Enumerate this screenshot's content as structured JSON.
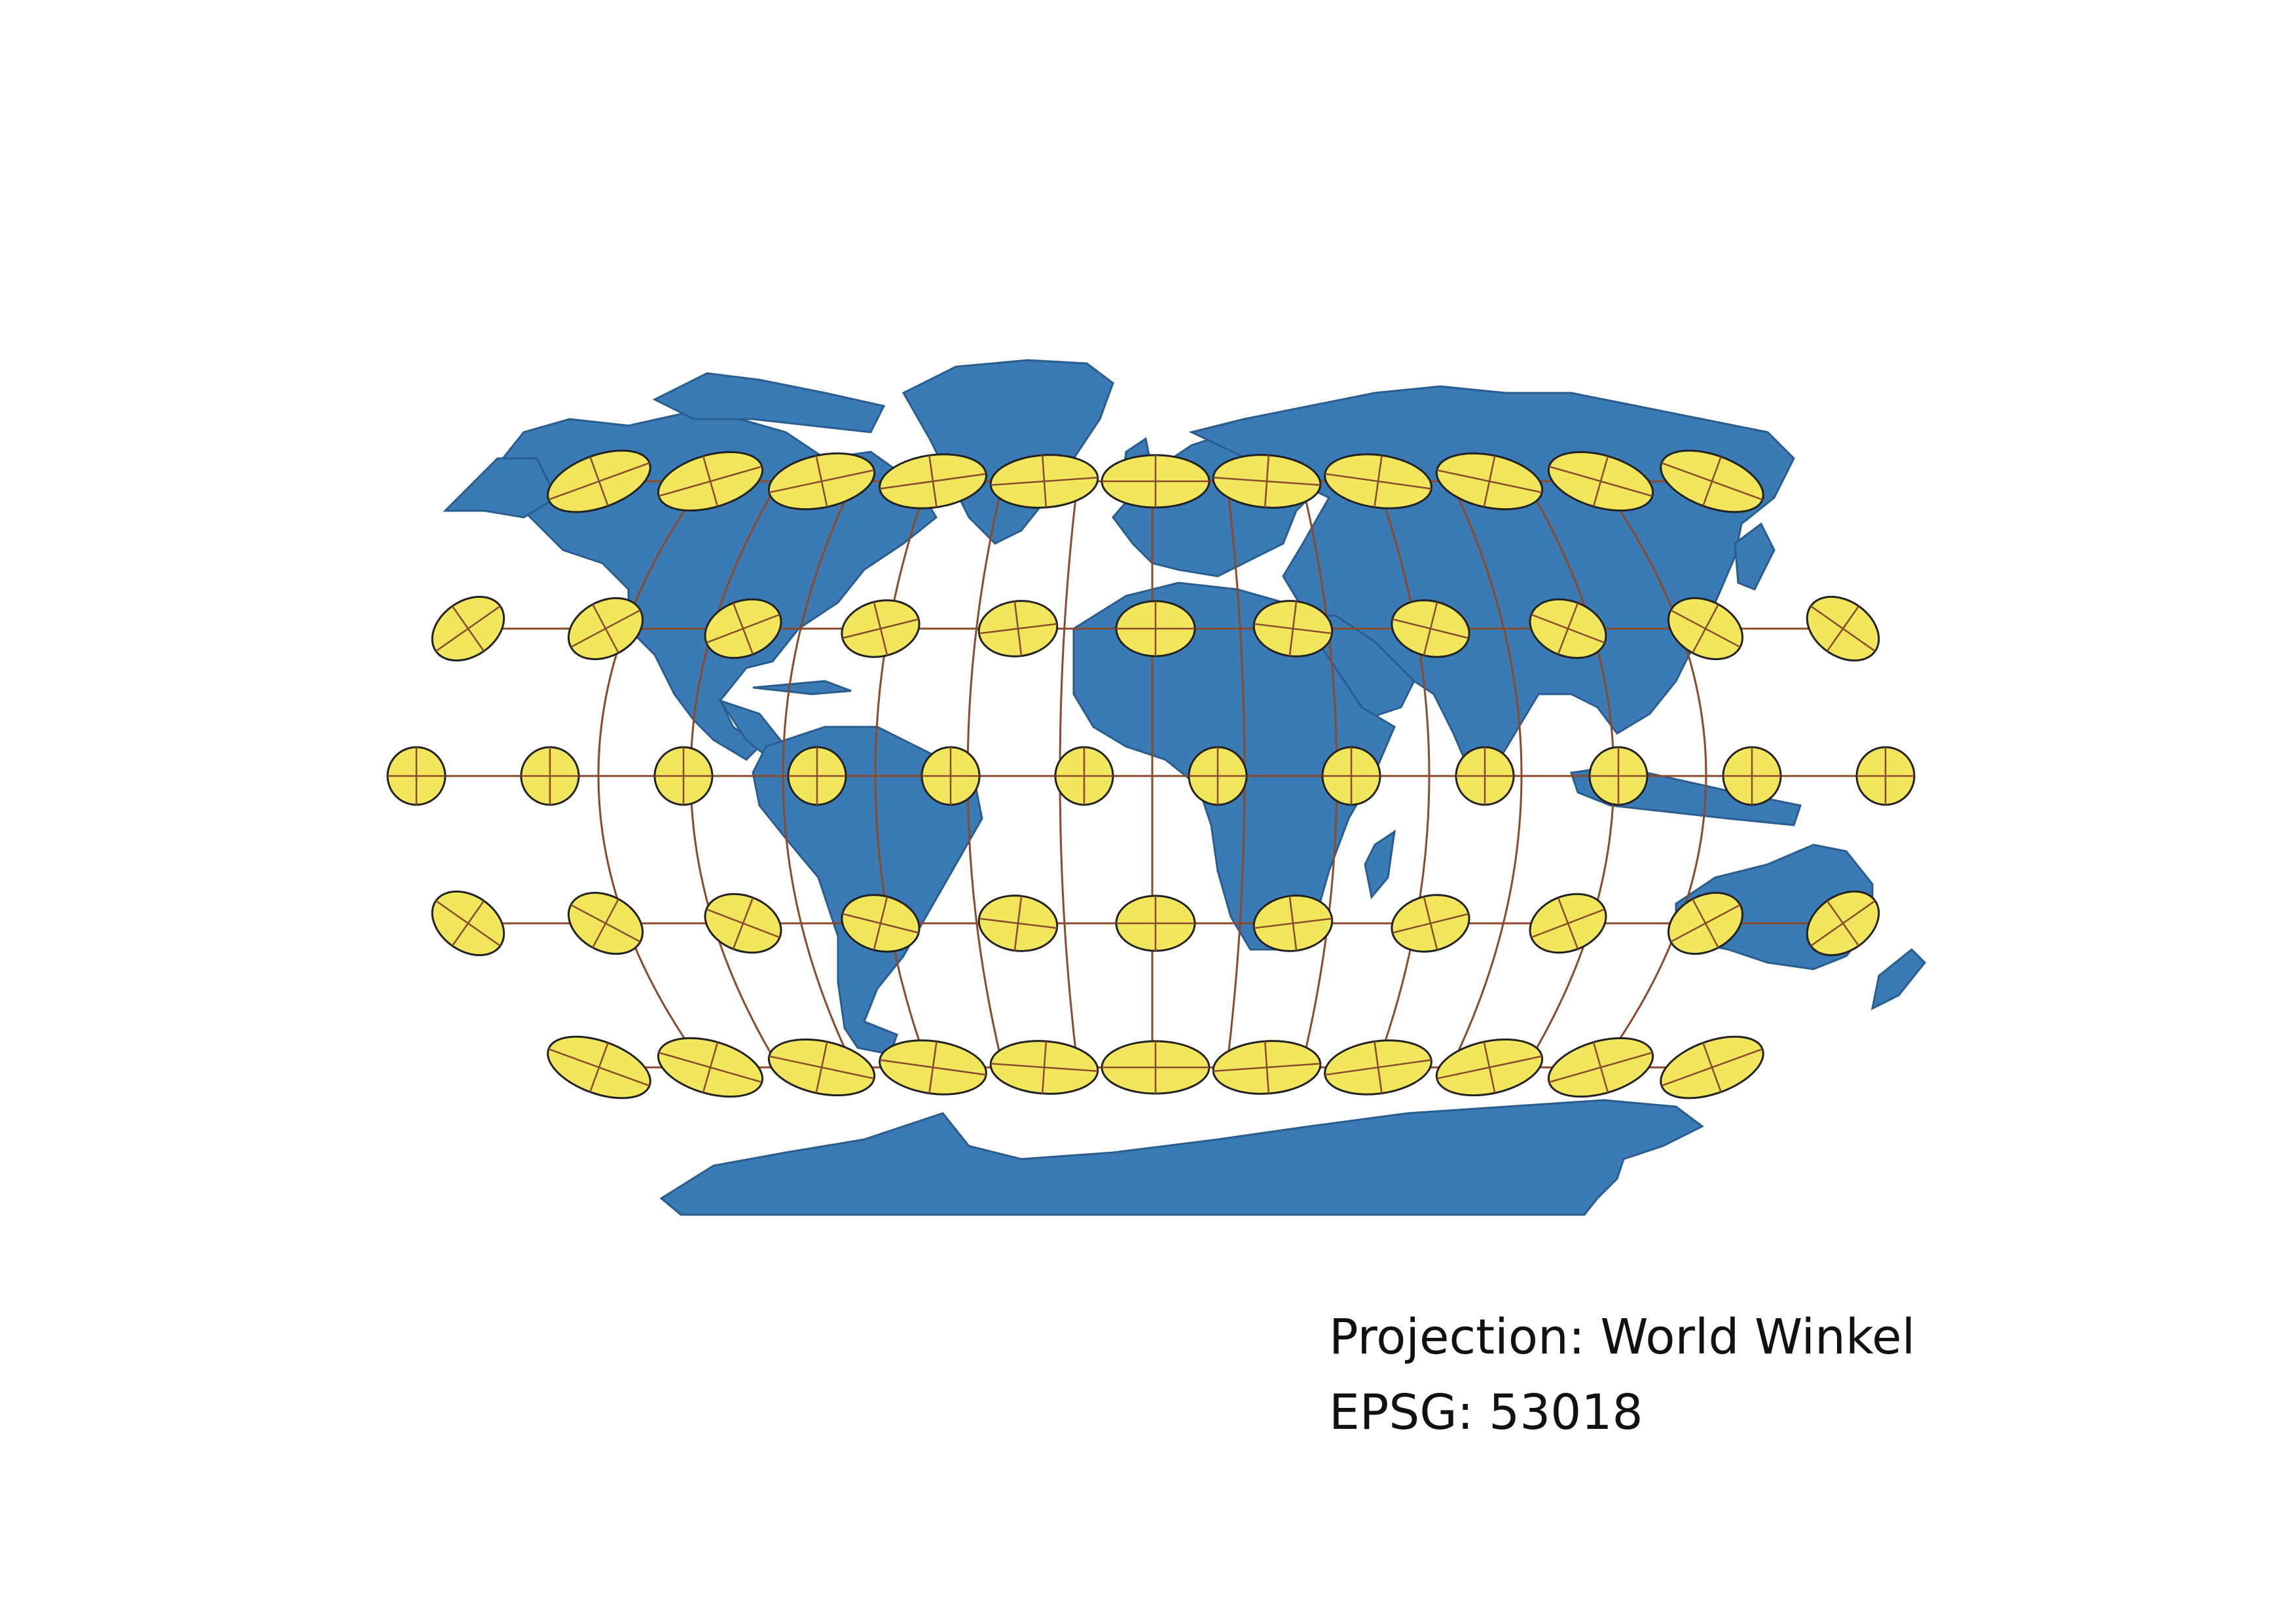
{
  "map": {
    "projection_label": "Projection: World Winkel",
    "epsg_label": "EPSG: 53018",
    "colors": {
      "land": "#3a7ab5",
      "land_edge": "#2a5d8f",
      "ellipse_fill": "#f1e65c",
      "ellipse_edge": "#222222",
      "graticule": "#8b4a2b",
      "background": "#ffffff"
    },
    "graticule": {
      "latitudes": [
        -60,
        -30,
        0,
        30,
        60
      ],
      "longitudes": [
        -150,
        -120,
        -90,
        -60,
        -30,
        0,
        30,
        60,
        90,
        120,
        150,
        180
      ]
    },
    "indicatrix": {
      "shape": "ellipse",
      "rows_at_latitudes": [
        60,
        30,
        0,
        -30,
        -60
      ],
      "ellipses_per_row": [
        11,
        11,
        12,
        11,
        11
      ]
    }
  }
}
